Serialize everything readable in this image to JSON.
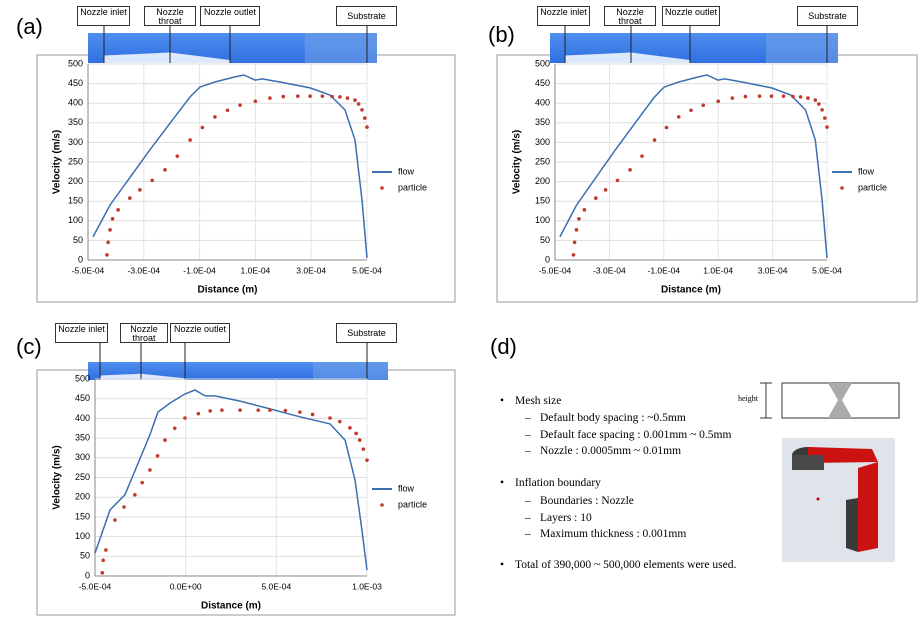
{
  "chart_data": [
    {
      "type": "line",
      "panel": "(a)",
      "annotations": [
        "Nozzle inlet",
        "Nozzle throat",
        "Nozzle outlet",
        "Substrate"
      ],
      "xlabel": "Distance (m)",
      "ylabel": "Velocity (m/s)",
      "grid": true,
      "legend": "right",
      "xlim": [
        -0.0005,
        0.0005
      ],
      "ylim": [
        0,
        500
      ],
      "xticks": [
        {
          "value": -0.0005,
          "label": "-5.0E-04"
        },
        {
          "value": -0.0003,
          "label": "-3.0E-04"
        },
        {
          "value": -0.0001,
          "label": "-1.0E-04"
        },
        {
          "value": 0.0001,
          "label": "1.0E-04"
        },
        {
          "value": 0.0003,
          "label": "3.0E-04"
        },
        {
          "value": 0.0005,
          "label": "5.0E-04"
        }
      ],
      "yticks": [
        0,
        50,
        100,
        150,
        200,
        250,
        300,
        350,
        400,
        450,
        500
      ],
      "series": [
        {
          "name": "flow",
          "color": "#3a6fb0",
          "mode": "line",
          "x": [
            -0.000482,
            -0.000421,
            -0.000278,
            -0.00017,
            -0.000134,
            -9.9e-05,
            -4.5e-05,
            2.7e-05,
            5.9e-05,
            9.9e-05,
            0.000124,
            0.000188,
            0.000296,
            0.000367,
            0.000421,
            0.000457,
            0.000482,
            0.0005
          ],
          "values": [
            59,
            140,
            281,
            383,
            416,
            441,
            454,
            467,
            472,
            459,
            462,
            454,
            439,
            421,
            383,
            306,
            153,
            5
          ]
        },
        {
          "name": "particle",
          "color": "#c0392b",
          "mode": "markers",
          "x": [
            -0.000432,
            -0.000428,
            -0.000421,
            -0.000412,
            -0.000392,
            -0.00035,
            -0.000314,
            -0.00027,
            -0.000224,
            -0.00018,
            -0.000134,
            -9e-05,
            -4.5e-05,
            0,
            4.5e-05,
            0.0001,
            0.000152,
            0.0002,
            0.000252,
            0.000296,
            0.00034,
            0.000375,
            0.000403,
            0.00043,
            0.000457,
            0.00047,
            0.000482,
            0.000492,
            0.0005
          ],
          "values": [
            13,
            45,
            77,
            105,
            128,
            158,
            179,
            203,
            230,
            265,
            306,
            338,
            365,
            382,
            395,
            405,
            413,
            417,
            418,
            418,
            418,
            417,
            416,
            413,
            408,
            398,
            383,
            362,
            339
          ]
        }
      ]
    },
    {
      "type": "line",
      "panel": "(b)",
      "annotations": [
        "Nozzle inlet",
        "Nozzle throat",
        "Nozzle outlet",
        "Substrate"
      ],
      "xlabel": "Distance (m)",
      "ylabel": "Velocity (m/s)",
      "grid": true,
      "legend": "right",
      "xlim": [
        -0.0005,
        0.0005
      ],
      "ylim": [
        0,
        500
      ],
      "xticks": [
        {
          "value": -0.0005,
          "label": "-5.0E-04"
        },
        {
          "value": -0.0003,
          "label": "-3.0E-04"
        },
        {
          "value": -0.0001,
          "label": "-1.0E-04"
        },
        {
          "value": 0.0001,
          "label": "1.0E-04"
        },
        {
          "value": 0.0003,
          "label": "3.0E-04"
        },
        {
          "value": 0.0005,
          "label": "5.0E-04"
        }
      ],
      "yticks": [
        0,
        50,
        100,
        150,
        200,
        250,
        300,
        350,
        400,
        450,
        500
      ],
      "series": [
        {
          "name": "flow",
          "color": "#3a6fb0",
          "mode": "line",
          "x": [
            -0.000482,
            -0.000421,
            -0.000278,
            -0.00017,
            -0.000134,
            -9.9e-05,
            -4.5e-05,
            2.7e-05,
            5.9e-05,
            9.9e-05,
            0.000124,
            0.000188,
            0.000296,
            0.000367,
            0.000421,
            0.000457,
            0.000482,
            0.0005
          ],
          "values": [
            59,
            140,
            281,
            383,
            416,
            441,
            454,
            467,
            472,
            459,
            462,
            454,
            439,
            421,
            383,
            306,
            153,
            5
          ]
        },
        {
          "name": "particle",
          "color": "#c0392b",
          "mode": "markers",
          "x": [
            -0.000432,
            -0.000428,
            -0.000421,
            -0.000412,
            -0.000392,
            -0.00035,
            -0.000314,
            -0.00027,
            -0.000224,
            -0.00018,
            -0.000134,
            -9e-05,
            -4.5e-05,
            0,
            4.5e-05,
            0.0001,
            0.000152,
            0.0002,
            0.000252,
            0.000296,
            0.00034,
            0.000375,
            0.000403,
            0.00043,
            0.000457,
            0.00047,
            0.000482,
            0.000492,
            0.0005
          ],
          "values": [
            13,
            45,
            77,
            105,
            128,
            158,
            179,
            203,
            230,
            265,
            306,
            338,
            365,
            382,
            395,
            405,
            413,
            417,
            418,
            418,
            418,
            417,
            416,
            413,
            408,
            398,
            383,
            362,
            339
          ]
        }
      ]
    },
    {
      "type": "line",
      "panel": "(c)",
      "annotations": [
        "Nozzle inlet",
        "Nozzle throat",
        "Nozzle outlet",
        "Substrate"
      ],
      "xlabel": "Distance (m)",
      "ylabel": "Velocity (m/s)",
      "grid": true,
      "legend": "right",
      "xlim": [
        -0.0005,
        0.001
      ],
      "ylim": [
        0,
        500
      ],
      "xticks": [
        {
          "value": -0.0005,
          "label": "-5.0E-04"
        },
        {
          "value": 0,
          "label": "0.0E+00"
        },
        {
          "value": 0.0005,
          "label": "5.0E-04"
        },
        {
          "value": 0.001,
          "label": "1.0E-03"
        }
      ],
      "yticks": [
        0,
        50,
        100,
        150,
        200,
        250,
        300,
        350,
        400,
        450,
        500
      ],
      "series": [
        {
          "name": "flow",
          "color": "#3a6fb0",
          "mode": "line",
          "x": [
            -0.0005,
            -0.000417,
            -0.000335,
            -0.000197,
            -0.000153,
            -8.6e-05,
            -4e-06,
            5.1e-05,
            0.000107,
            0.000162,
            0.0003,
            0.000465,
            0.00063,
            0.000796,
            0.000879,
            0.000934,
            0.000972,
            0.001
          ],
          "values": [
            58,
            168,
            206,
            358,
            416,
            439,
            462,
            472,
            457,
            457,
            444,
            424,
            404,
            386,
            345,
            244,
            117,
            15
          ]
        },
        {
          "name": "particle",
          "color": "#c0392b",
          "mode": "markers",
          "x": [
            -0.00046,
            -0.000455,
            -0.00044,
            -0.00039,
            -0.00034,
            -0.00028,
            -0.00024,
            -0.000197,
            -0.000155,
            -0.000114,
            -6e-05,
            -4e-06,
            7e-05,
            0.000135,
            0.0002,
            0.0003,
            0.0004,
            0.000465,
            0.00055,
            0.00063,
            0.0007,
            0.000796,
            0.00085,
            0.000906,
            0.00094,
            0.00096,
            0.00098,
            0.001
          ],
          "values": [
            8,
            40,
            66,
            142,
            175,
            206,
            237,
            269,
            305,
            345,
            375,
            401,
            412,
            419,
            421,
            421,
            421,
            421,
            420,
            416,
            410,
            401,
            392,
            376,
            362,
            345,
            322,
            294
          ]
        }
      ]
    }
  ],
  "panel_d": {
    "label": "(d)",
    "bullets": [
      {
        "text": "Mesh size",
        "items": [
          "Default body spacing : ~0.5mm",
          "Default face spacing : 0.001mm ~ 0.5mm",
          "Nozzle : 0.0005mm ~ 0.01mm"
        ]
      },
      {
        "text": "Inflation boundary",
        "items": [
          "Boundaries : Nozzle",
          "Layers : 10",
          "Maximum thickness : 0.001mm"
        ]
      },
      {
        "text": "Total of 390,000 ~ 500,000 elements were used."
      }
    ],
    "diagram_label": "height"
  }
}
